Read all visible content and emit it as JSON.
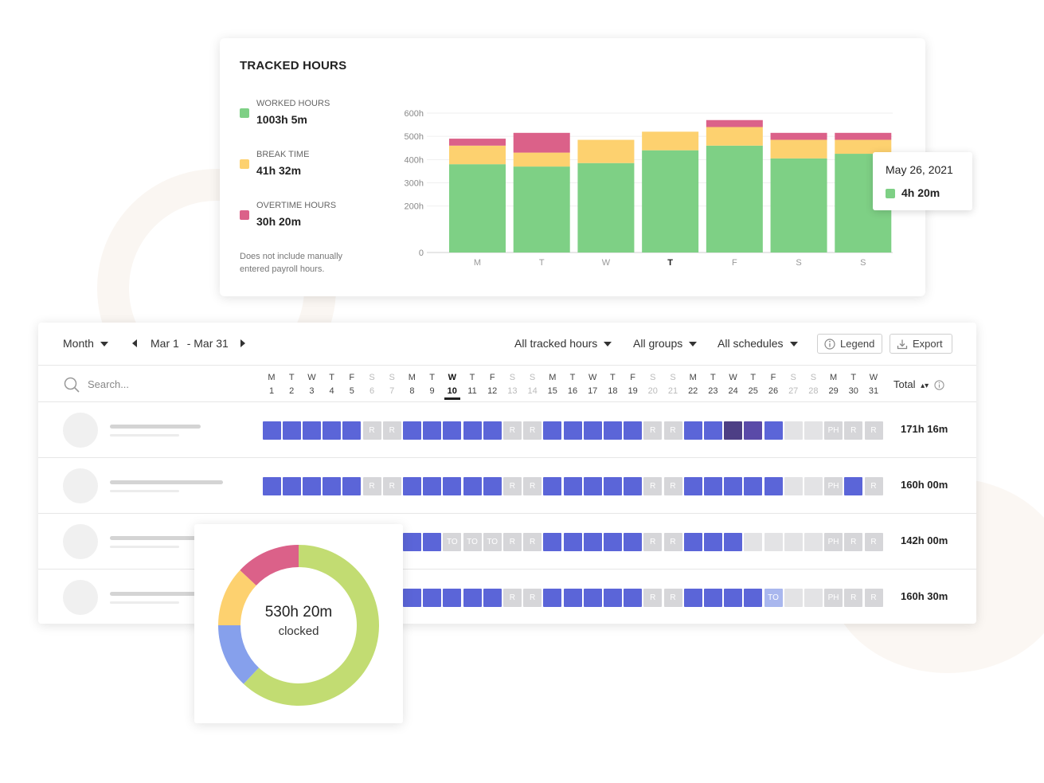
{
  "tracked": {
    "title": "TRACKED HOURS",
    "legend": [
      {
        "label": "WORKED HOURS",
        "value": "1003h 5m",
        "color": "#7ed085"
      },
      {
        "label": "BREAK TIME",
        "value": "41h 32m",
        "color": "#fdd16f"
      },
      {
        "label": "OVERTIME HOURS",
        "value": "30h 20m",
        "color": "#db6189"
      }
    ],
    "note": "Does not include manually entered payroll hours."
  },
  "chart_data": {
    "type": "bar",
    "stacked": true,
    "categories": [
      "M",
      "T",
      "W",
      "T",
      "F",
      "S",
      "S"
    ],
    "highlighted_category_index": 3,
    "series": [
      {
        "name": "WORKED HOURS",
        "color": "#7ed085",
        "values": [
          380,
          370,
          385,
          440,
          460,
          405,
          425
        ]
      },
      {
        "name": "BREAK TIME",
        "color": "#fdd16f",
        "values": [
          80,
          60,
          100,
          80,
          80,
          80,
          60
        ]
      },
      {
        "name": "OVERTIME HOURS",
        "color": "#db6189",
        "values": [
          30,
          85,
          0,
          0,
          30,
          30,
          30
        ]
      }
    ],
    "y_ticks": [
      "0",
      "200h",
      "300h",
      "400h",
      "500h",
      "600h"
    ],
    "ylim": [
      0,
      600
    ],
    "grid": true
  },
  "tooltip": {
    "date": "May 26, 2021",
    "value": "4h 20m",
    "color": "#7ed085"
  },
  "toolbar": {
    "period": "Month",
    "range_start": "Mar 1",
    "range_end": "- Mar 31",
    "filter_hours": "All tracked hours",
    "filter_groups": "All groups",
    "filter_schedules": "All schedules",
    "legend_btn": "Legend",
    "export_btn": "Export"
  },
  "search": {
    "placeholder": "Search..."
  },
  "days": {
    "letters": [
      "M",
      "T",
      "W",
      "T",
      "F",
      "S",
      "S",
      "M",
      "T",
      "W",
      "T",
      "F",
      "S",
      "S",
      "M",
      "T",
      "W",
      "T",
      "F",
      "S",
      "S",
      "M",
      "T",
      "W",
      "T",
      "F",
      "S",
      "S",
      "M",
      "T",
      "W"
    ],
    "numbers": [
      "1",
      "2",
      "3",
      "4",
      "5",
      "6",
      "7",
      "8",
      "9",
      "10",
      "11",
      "12",
      "13",
      "14",
      "15",
      "16",
      "17",
      "18",
      "19",
      "20",
      "21",
      "22",
      "23",
      "24",
      "25",
      "26",
      "27",
      "28",
      "29",
      "30",
      "31"
    ],
    "today_index": 9
  },
  "total_label": "Total",
  "rows": [
    {
      "total": "171h 16m",
      "cells": [
        "w",
        "w",
        "w",
        "w",
        "w",
        "R",
        "R",
        "w",
        "w",
        "w",
        "w",
        "w",
        "R",
        "R",
        "w",
        "w",
        "w",
        "w",
        "w",
        "R",
        "R",
        "w",
        "w",
        "d",
        "d2",
        "w",
        "e",
        "e",
        "PH",
        "R",
        "R"
      ]
    },
    {
      "total": "160h 00m",
      "cells": [
        "w",
        "w",
        "w",
        "w",
        "w",
        "R",
        "R",
        "w",
        "w",
        "w",
        "w",
        "w",
        "R",
        "R",
        "w",
        "w",
        "w",
        "w",
        "w",
        "R",
        "R",
        "w",
        "w",
        "w",
        "w",
        "w",
        "e",
        "e",
        "PH",
        "w",
        "R"
      ]
    },
    {
      "total": "142h 00m",
      "cells": [
        "w",
        "w",
        "w",
        "w",
        "w",
        "R",
        "R",
        "w",
        "w",
        "TO",
        "TO",
        "TO",
        "R",
        "R",
        "w",
        "w",
        "w",
        "w",
        "w",
        "R",
        "R",
        "w",
        "w",
        "w",
        "e",
        "e",
        "e",
        "e",
        "PH",
        "R",
        "R"
      ]
    },
    {
      "total": "160h 30m",
      "cells": [
        "w",
        "w",
        "w",
        "w",
        "w",
        "R",
        "R",
        "w",
        "w",
        "w",
        "w",
        "w",
        "R",
        "R",
        "w",
        "w",
        "w",
        "w",
        "w",
        "R",
        "R",
        "w",
        "w",
        "w",
        "w",
        "TOL",
        "e",
        "e",
        "PH",
        "R",
        "R"
      ]
    }
  ],
  "donut": {
    "main": "530h 20m",
    "sub": "clocked",
    "segments": [
      {
        "value": 62,
        "color": "#c2dc72"
      },
      {
        "value": 13,
        "color": "#86a0ec"
      },
      {
        "value": 12,
        "color": "#fdd16f"
      },
      {
        "value": 13,
        "color": "#db6189"
      }
    ]
  }
}
